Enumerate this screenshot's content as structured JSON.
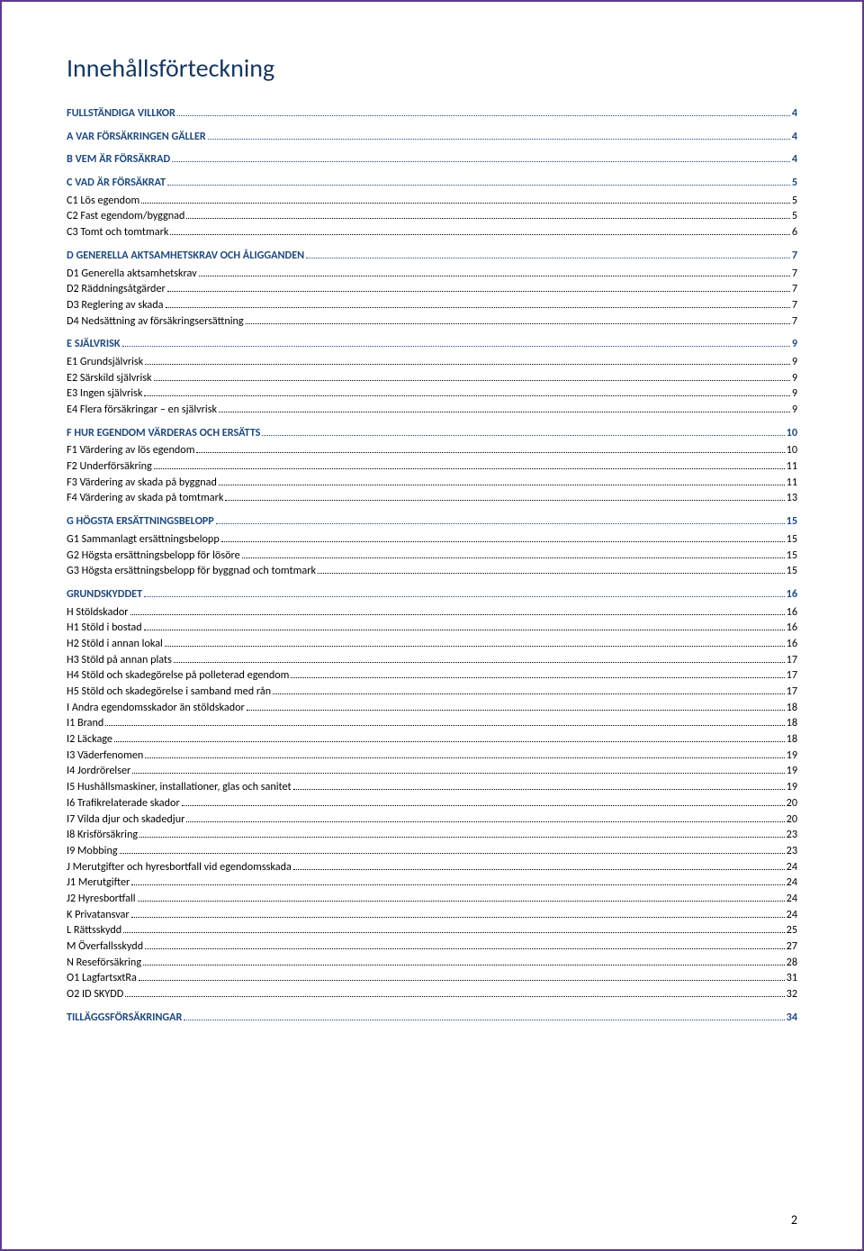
{
  "colors": {
    "page_border": "#5e3a8c",
    "heading_text": "#17365d",
    "link_blue": "#1f497d",
    "body_text": "#000000",
    "background": "#ffffff"
  },
  "title": "Innehållsförteckning",
  "page_number": "2",
  "toc": [
    {
      "level": 1,
      "label": "FULLSTÄNDIGA VILLKOR",
      "page": "4"
    },
    {
      "level": 1,
      "label": "A VAR FÖRSÄKRINGEN GÄLLER",
      "page": "4"
    },
    {
      "level": 1,
      "label": "B VEM ÄR FÖRSÄKRAD",
      "page": "4"
    },
    {
      "level": 1,
      "label": "C VAD ÄR FÖRSÄKRAT",
      "page": "5"
    },
    {
      "level": 2,
      "label": "C1 Lös egendom",
      "page": "5"
    },
    {
      "level": 2,
      "label": "C2 Fast egendom/byggnad",
      "page": "5"
    },
    {
      "level": 2,
      "label": "C3 Tomt och tomtmark",
      "page": "6"
    },
    {
      "level": 1,
      "label": "D GENERELLA AKTSAMHETSKRAV OCH ÅLIGGANDEN",
      "page": "7"
    },
    {
      "level": 2,
      "label": "D1 Generella aktsamhetskrav",
      "page": "7"
    },
    {
      "level": 2,
      "label": "D2 Räddningsåtgärder",
      "page": "7"
    },
    {
      "level": 2,
      "label": "D3 Reglering av skada",
      "page": "7"
    },
    {
      "level": 2,
      "label": "D4 Nedsättning av försäkringsersättning",
      "page": "7"
    },
    {
      "level": 1,
      "label": "E SJÄLVRISK",
      "page": "9"
    },
    {
      "level": 2,
      "label": "E1 Grundsjälvrisk",
      "page": "9"
    },
    {
      "level": 2,
      "label": "E2 Särskild självrisk",
      "page": "9"
    },
    {
      "level": 2,
      "label": "E3 Ingen självrisk",
      "page": "9"
    },
    {
      "level": 2,
      "label": "E4 Flera försäkringar – en självrisk",
      "page": "9"
    },
    {
      "level": 1,
      "label": "F HUR EGENDOM VÄRDERAS OCH ERSÄTTS",
      "page": "10"
    },
    {
      "level": 2,
      "label": "F1 Värdering av lös egendom",
      "page": "10"
    },
    {
      "level": 2,
      "label": "F2 Underförsäkring",
      "page": "11"
    },
    {
      "level": 2,
      "label": "F3 Värdering av skada på byggnad",
      "page": "11"
    },
    {
      "level": 2,
      "label": "F4 Värdering av skada på tomtmark",
      "page": "13"
    },
    {
      "level": 1,
      "label": "G HÖGSTA ERSÄTTNINGSBELOPP",
      "page": "15"
    },
    {
      "level": 2,
      "label": "G1 Sammanlagt ersättningsbelopp",
      "page": "15"
    },
    {
      "level": 2,
      "label": "G2 Högsta ersättningsbelopp för lösöre",
      "page": "15"
    },
    {
      "level": 2,
      "label": "G3 Högsta ersättningsbelopp för byggnad och tomtmark",
      "page": "15"
    },
    {
      "level": 1,
      "label": "GRUNDSKYDDET",
      "page": "16"
    },
    {
      "level": 2,
      "label": "H Stöldskador",
      "page": "16"
    },
    {
      "level": 2,
      "label": "H1 Stöld i bostad",
      "page": "16"
    },
    {
      "level": 2,
      "label": "H2 Stöld i annan lokal",
      "page": "16"
    },
    {
      "level": 2,
      "label": "H3 Stöld på annan plats",
      "page": "17"
    },
    {
      "level": 2,
      "label": "H4 Stöld och skadegörelse på polleterad egendom",
      "page": "17"
    },
    {
      "level": 2,
      "label": "H5 Stöld och skadegörelse i samband med rån",
      "page": "17"
    },
    {
      "level": 2,
      "label": "I Andra egendomsskador än stöldskador",
      "page": "18"
    },
    {
      "level": 2,
      "label": "I1 Brand",
      "page": "18"
    },
    {
      "level": 2,
      "label": "I2 Läckage",
      "page": "18"
    },
    {
      "level": 2,
      "label": "I3 Väderfenomen",
      "page": "19"
    },
    {
      "level": 2,
      "label": "I4 Jordrörelser",
      "page": "19"
    },
    {
      "level": 2,
      "label": "I5 Hushållsmaskiner, installationer, glas och sanitet",
      "page": "19"
    },
    {
      "level": 2,
      "label": "I6 Trafikrelaterade skador",
      "page": "20"
    },
    {
      "level": 2,
      "label": "I7 Vilda djur och skadedjur",
      "page": "20"
    },
    {
      "level": 2,
      "label": "I8 Krisförsäkring",
      "page": "23"
    },
    {
      "level": 2,
      "label": "I9 Mobbing",
      "page": "23"
    },
    {
      "level": 2,
      "label": "J Merutgifter och hyresbortfall vid egendomsskada",
      "page": "24"
    },
    {
      "level": 2,
      "label": "J1 Merutgifter",
      "page": "24"
    },
    {
      "level": 2,
      "label": "J2 Hyresbortfall",
      "page": "24"
    },
    {
      "level": 2,
      "label": "K Privatansvar",
      "page": "24"
    },
    {
      "level": 2,
      "label": "L Rättsskydd",
      "page": "25"
    },
    {
      "level": 2,
      "label": "M Överfallsskydd",
      "page": "27"
    },
    {
      "level": 2,
      "label": "N Reseförsäkring",
      "page": "28"
    },
    {
      "level": 2,
      "label": "O1 LagfartsxtRa",
      "page": "31"
    },
    {
      "level": 2,
      "label": "O2 ID SKYDD",
      "page": "32"
    },
    {
      "level": 1,
      "label": "TILLÄGGSFÖRSÄKRINGAR",
      "page": "34"
    }
  ]
}
